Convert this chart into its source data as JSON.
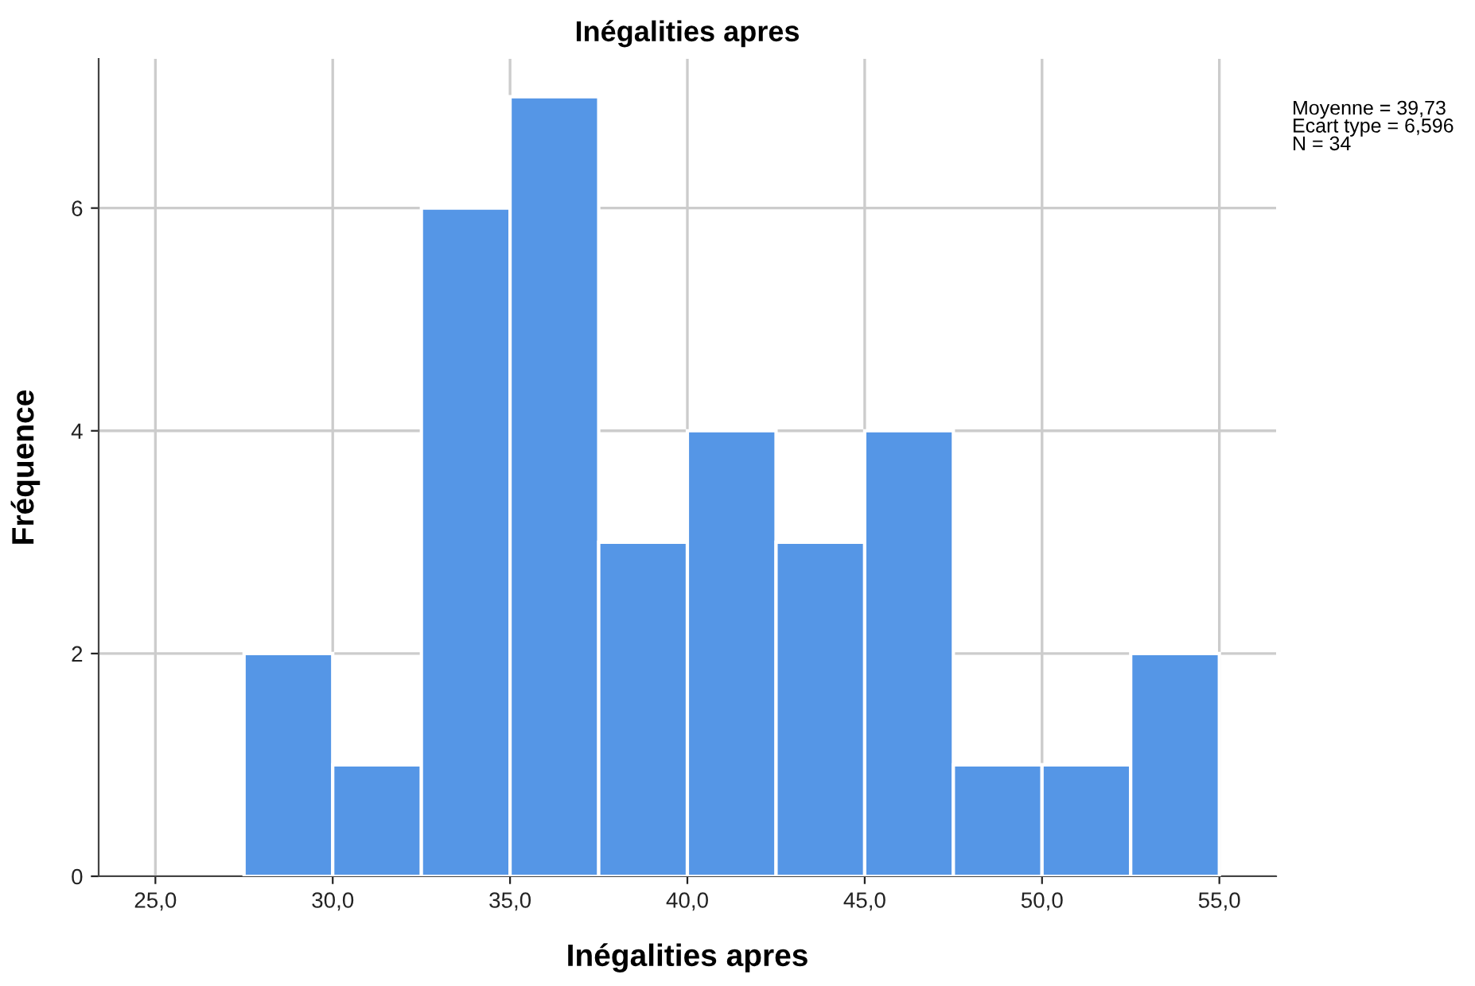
{
  "chart_data": {
    "type": "histogram",
    "title": "Inégalities apres",
    "xlabel": "Inégalities apres",
    "ylabel": "Fréquence",
    "bins": [
      27.5,
      30,
      32.5,
      35,
      37.5,
      40,
      42.5,
      45,
      47.5,
      50,
      52.5,
      55
    ],
    "values": [
      2,
      1,
      6,
      7,
      3,
      4,
      3,
      4,
      1,
      1,
      2
    ],
    "color": "#5596e6",
    "xlim": [
      23.4,
      56.6
    ],
    "ylim": [
      0,
      7.34
    ],
    "xticks": [
      {
        "value": 25,
        "label": "25,0"
      },
      {
        "value": 30,
        "label": "30,0"
      },
      {
        "value": 35,
        "label": "35,0"
      },
      {
        "value": 40,
        "label": "40,0"
      },
      {
        "value": 45,
        "label": "45,0"
      },
      {
        "value": 50,
        "label": "50,0"
      },
      {
        "value": 55,
        "label": "55,0"
      }
    ],
    "yticks": [
      0,
      2,
      4,
      6
    ],
    "grid": true,
    "annotations": [
      "Moyenne = 39,73\nEcart type = 6,596\nN = 34"
    ]
  }
}
